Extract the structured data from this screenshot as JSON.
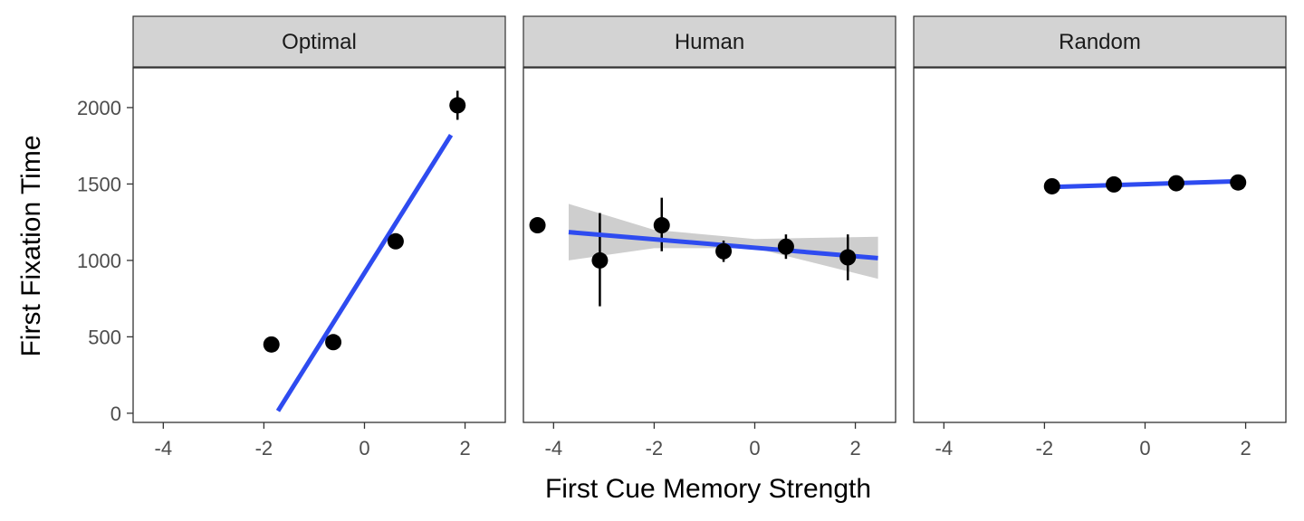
{
  "chart_data": {
    "type": "scatter",
    "xlabel": "First Cue Memory Strength",
    "ylabel": "First Fixation Time",
    "xlim": [
      -4.6,
      2.8
    ],
    "ylim": [
      -60,
      2260
    ],
    "x_ticks": [
      -4,
      -2,
      0,
      2
    ],
    "y_ticks": [
      0,
      500,
      1000,
      1500,
      2000
    ],
    "x_tick_labels": [
      "-4",
      "-2",
      "0",
      "2"
    ],
    "y_tick_labels": [
      "0",
      "500",
      "1000",
      "1500",
      "2000"
    ],
    "grid": false,
    "colors": {
      "points": "#000000",
      "fit_line": "#2E4BF0",
      "ribbon": "#BEBEBE",
      "strip_bg": "#D3D3D3",
      "panel_border": "#333333"
    },
    "panels": [
      {
        "name": "Optimal",
        "points": [
          {
            "x": -1.85,
            "y": 450,
            "err_low": 450,
            "err_high": 450
          },
          {
            "x": -0.62,
            "y": 465,
            "err_low": 465,
            "err_high": 465
          },
          {
            "x": 0.62,
            "y": 1125,
            "err_low": 1125,
            "err_high": 1125
          },
          {
            "x": 1.85,
            "y": 2015,
            "err_low": 1920,
            "err_high": 2110
          }
        ],
        "fit": {
          "x": [
            -1.72,
            1.72
          ],
          "y": [
            15,
            1820
          ]
        },
        "ribbon": null
      },
      {
        "name": "Human",
        "points": [
          {
            "x": -4.32,
            "y": 1230,
            "err_low": 1230,
            "err_high": 1230
          },
          {
            "x": -3.08,
            "y": 1000,
            "err_low": 700,
            "err_high": 1310
          },
          {
            "x": -1.85,
            "y": 1230,
            "err_low": 1060,
            "err_high": 1410
          },
          {
            "x": -0.62,
            "y": 1060,
            "err_low": 990,
            "err_high": 1130
          },
          {
            "x": 0.62,
            "y": 1090,
            "err_low": 1010,
            "err_high": 1170
          },
          {
            "x": 1.85,
            "y": 1020,
            "err_low": 870,
            "err_high": 1170
          }
        ],
        "fit": {
          "x": [
            -3.7,
            2.45
          ],
          "y": [
            1185,
            1015
          ]
        },
        "ribbon": {
          "x": [
            -3.7,
            -2.0,
            0.0,
            2.45
          ],
          "lower": [
            1000,
            1080,
            1080,
            880
          ],
          "upper": [
            1370,
            1200,
            1140,
            1155
          ]
        }
      },
      {
        "name": "Random",
        "points": [
          {
            "x": -1.85,
            "y": 1485,
            "err_low": 1485,
            "err_high": 1485
          },
          {
            "x": -0.62,
            "y": 1497,
            "err_low": 1497,
            "err_high": 1497
          },
          {
            "x": 0.62,
            "y": 1505,
            "err_low": 1505,
            "err_high": 1505
          },
          {
            "x": 1.85,
            "y": 1510,
            "err_low": 1510,
            "err_high": 1510
          }
        ],
        "fit": {
          "x": [
            -1.85,
            1.85
          ],
          "y": [
            1480,
            1518
          ]
        },
        "ribbon": null
      }
    ]
  }
}
